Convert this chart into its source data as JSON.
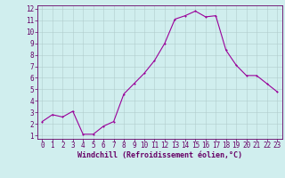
{
  "xlabel": "Windchill (Refroidissement éolien,°C)",
  "x": [
    0,
    1,
    2,
    3,
    4,
    5,
    6,
    7,
    8,
    9,
    10,
    11,
    12,
    13,
    14,
    15,
    16,
    17,
    18,
    19,
    20,
    21,
    22,
    23
  ],
  "y": [
    2.2,
    2.8,
    2.6,
    3.1,
    1.1,
    1.1,
    1.8,
    2.2,
    4.6,
    5.5,
    6.4,
    7.5,
    9.0,
    11.1,
    11.4,
    11.8,
    11.3,
    11.4,
    8.4,
    7.1,
    6.2,
    6.2,
    5.5,
    4.8
  ],
  "line_color": "#990099",
  "marker_color": "#990099",
  "bg_color": "#d0eeee",
  "grid_color": "#b0cccc",
  "axis_label_color": "#660066",
  "tick_label_color": "#660066",
  "spine_color": "#660066",
  "ylim": [
    1,
    12
  ],
  "xlim": [
    -0.5,
    23.5
  ],
  "yticks": [
    1,
    2,
    3,
    4,
    5,
    6,
    7,
    8,
    9,
    10,
    11,
    12
  ],
  "xticks": [
    0,
    1,
    2,
    3,
    4,
    5,
    6,
    7,
    8,
    9,
    10,
    11,
    12,
    13,
    14,
    15,
    16,
    17,
    18,
    19,
    20,
    21,
    22,
    23
  ],
  "tick_fontsize": 5.5,
  "xlabel_fontsize": 6.0,
  "marker_size": 2.0,
  "linewidth": 0.8
}
